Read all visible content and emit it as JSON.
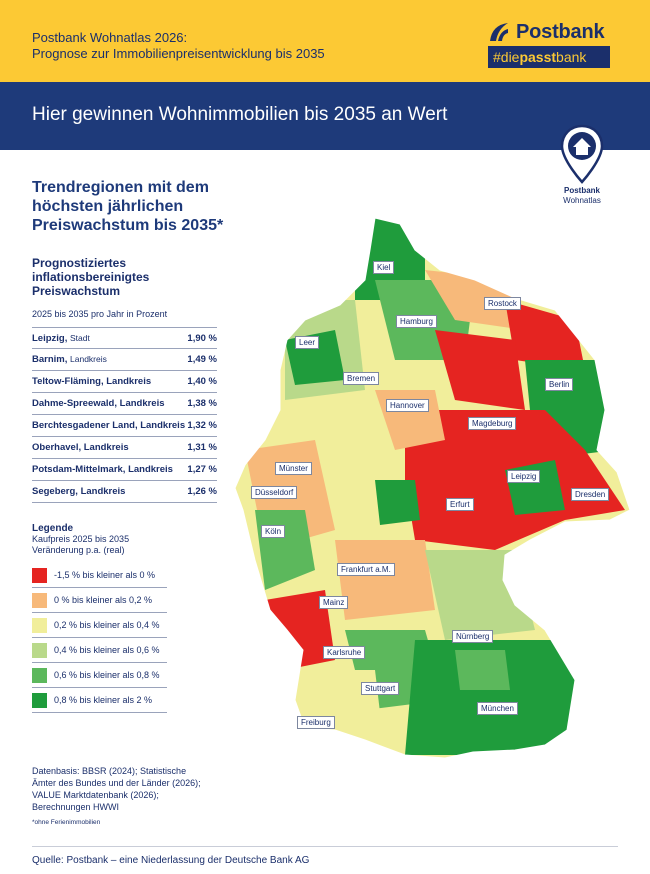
{
  "header": {
    "line1": "Postbank Wohnatlas 2026:",
    "line2": "Prognose zur Immobilienpreisentwicklung bis 2035",
    "brand": "Postbank",
    "tag_pre": "#die",
    "tag_bold": "passt",
    "tag_post": "bank"
  },
  "banner": {
    "headline": "Hier gewinnen Wohnimmobilien bis 2035 an Wert"
  },
  "pin": {
    "brand": "Postbank",
    "product": "Wohnatlas"
  },
  "trend_title": "Trendregionen mit dem höchsten jährlichen Preiswachstum bis 2035*",
  "prognose_title": "Prognostiziertes inflationsbereinigtes Preiswachstum",
  "table_sub": "2025 bis 2035 pro Jahr in Prozent",
  "rows": [
    {
      "name": "Leipzig,",
      "kind": "Stadt",
      "value": "1,90 %"
    },
    {
      "name": "Barnim,",
      "kind": "Landkreis",
      "value": "1,49 %"
    },
    {
      "name": "Teltow-Fläming, Landkreis",
      "kind": "",
      "value": "1,40 %"
    },
    {
      "name": "Dahme-Spreewald, Landkreis",
      "kind": "",
      "value": "1,38 %"
    },
    {
      "name": "Berchtesgadener Land, Landkreis",
      "kind": "",
      "value": "1,32 %"
    },
    {
      "name": "Oberhavel, Landkreis",
      "kind": "",
      "value": "1,31 %"
    },
    {
      "name": "Potsdam-Mittelmark, Landkreis",
      "kind": "",
      "value": "1,27 %"
    },
    {
      "name": "Segeberg, Landkreis",
      "kind": "",
      "value": "1,26 %"
    }
  ],
  "legend": {
    "title": "Legende",
    "sub1": "Kaufpreis 2025 bis 2035",
    "sub2": "Veränderung p.a. (real)",
    "items": [
      {
        "label": "-1,5 % bis kleiner als 0 %",
        "color": "#e52421"
      },
      {
        "label": "0 % bis kleiner als 0,2 %",
        "color": "#f7b97a"
      },
      {
        "label": "0,2 % bis kleiner als 0,4 %",
        "color": "#f1ee9b"
      },
      {
        "label": "0,4 % bis kleiner als 0,6 %",
        "color": "#b9d98a"
      },
      {
        "label": "0,6 % bis kleiner als 0,8 %",
        "color": "#5cb85c"
      },
      {
        "label": "0,8 % bis kleiner als 2 %",
        "color": "#1f9c3c"
      }
    ]
  },
  "basis": [
    "Datenbasis: BBSR (2024); Statistische",
    "Ämter des Bundes und der Länder (2026);",
    "VALUE Marktdatenbank (2026);",
    "Berechnungen HWWI"
  ],
  "footnote": "*ohne Ferienimmobilien",
  "source": "Quelle: Postbank – eine Niederlassung der Deutsche Bank AG",
  "cities": [
    "Kiel",
    "Rostock",
    "Hamburg",
    "Leer",
    "Bremen",
    "Hannover",
    "Berlin",
    "Magdeburg",
    "Münster",
    "Leipzig",
    "Dresden",
    "Düsseldorf",
    "Erfurt",
    "Köln",
    "Frankfurt a.M.",
    "Mainz",
    "Nürnberg",
    "Karlsruhe",
    "Stuttgart",
    "München",
    "Freiburg"
  ]
}
